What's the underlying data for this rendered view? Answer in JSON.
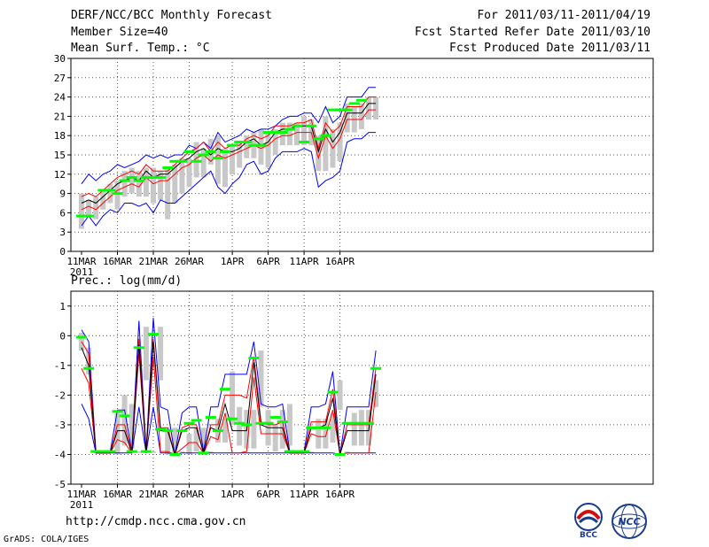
{
  "header": {
    "title": "DERF/NCC/BCC Monthly Forecast",
    "member_size": "Member Size=40",
    "variable": "Mean Surf. Temp.: °C",
    "forecast_period": "For 2011/03/11-2011/04/19",
    "start_date": "Fcst Started Refer Date 2011/03/10",
    "produced_date": "Fcst Produced Date 2011/03/11"
  },
  "footer": {
    "url": "http://cmdp.ncc.cma.gov.cn",
    "credit": "GrADS: COLA/IGES",
    "logo_bcc": "BCC",
    "logo_ncc": "NCC"
  },
  "colors": {
    "envelope": "#0000ff",
    "spread": "#ff0000",
    "mean": "#000000",
    "obs": "#00ff00",
    "box": "#c8c8c8",
    "grid": "#555555"
  },
  "chart_data": [
    {
      "type": "line",
      "title": "Mean Surf. Temp.: °C",
      "x_tick_labels": [
        "11MAR",
        "16MAR",
        "21MAR",
        "26MAR",
        "1APR",
        "6APR",
        "11APR",
        "16APR"
      ],
      "x_tick_days": [
        1,
        6,
        11,
        16,
        22,
        27,
        32,
        37
      ],
      "year_label": "2011",
      "ylim": [
        0,
        30
      ],
      "y_ticks": [
        0,
        3,
        6,
        9,
        12,
        15,
        18,
        21,
        24,
        27,
        30
      ],
      "day_count": 40,
      "series": [
        {
          "name": "max",
          "values": [
            10.5,
            12,
            11,
            12,
            12.5,
            13.5,
            13,
            13.5,
            14,
            15,
            14.5,
            15,
            14.5,
            15,
            15,
            16.5,
            16,
            17,
            16,
            18.5,
            17,
            17.5,
            18,
            19,
            18.5,
            19,
            19,
            19.5,
            20.5,
            21,
            21,
            21.5,
            21.5,
            20,
            22.5,
            20,
            21,
            24,
            24,
            24,
            25.5,
            25.5
          ]
        },
        {
          "name": "upper",
          "values": [
            8.5,
            9,
            8.5,
            9.5,
            10.5,
            11.5,
            12,
            12.5,
            12,
            13.5,
            12.5,
            12.5,
            12.5,
            13.5,
            14.5,
            15.5,
            16,
            17,
            15.5,
            17,
            16,
            16.5,
            16.5,
            17.5,
            18,
            17.5,
            18,
            19.5,
            19.5,
            19.5,
            20,
            20,
            20.5,
            16,
            20,
            18.5,
            19.5,
            22.5,
            22.5,
            22.5,
            24,
            24
          ]
        },
        {
          "name": "mean",
          "values": [
            7.5,
            8,
            7.5,
            8.5,
            9.5,
            10.5,
            11,
            11.5,
            11,
            12.5,
            11.5,
            12,
            12,
            13,
            14,
            14.5,
            15.5,
            16,
            15,
            16,
            15.5,
            15.5,
            16,
            17,
            17.5,
            16.5,
            17,
            18.5,
            19,
            19,
            19.5,
            19.5,
            19.5,
            15.5,
            19,
            17,
            18.5,
            21.5,
            21.5,
            21.5,
            23,
            23
          ]
        },
        {
          "name": "lower",
          "values": [
            6.5,
            7,
            6.5,
            7.5,
            8.5,
            9.5,
            10,
            10.5,
            10,
            11.5,
            10.5,
            11,
            11,
            12,
            13,
            13.5,
            14.5,
            15,
            14,
            15,
            14.5,
            15,
            15.5,
            16,
            16.5,
            16,
            16.5,
            17.5,
            18,
            18,
            18.5,
            18.5,
            18.5,
            14.5,
            18,
            16,
            17.5,
            20.5,
            20.5,
            20.5,
            22,
            22
          ]
        },
        {
          "name": "min",
          "values": [
            4,
            5.5,
            4,
            5.5,
            6.5,
            6,
            7.5,
            7.5,
            7,
            7.5,
            6,
            8,
            7.5,
            7.5,
            8.5,
            9.5,
            10.5,
            11.5,
            12.5,
            10,
            9,
            10.5,
            11.5,
            13.5,
            14,
            12,
            12.5,
            14.5,
            15.5,
            15.5,
            15.5,
            16,
            15.5,
            10,
            11,
            11.5,
            12.5,
            17,
            17.5,
            17.5,
            18.5,
            18.5
          ]
        },
        {
          "name": "box_top",
          "values": [
            9,
            8,
            8.5,
            9.5,
            10.5,
            11,
            12.5,
            13,
            12.5,
            13,
            13,
            12.5,
            13,
            13.5,
            14.5,
            14.5,
            17,
            16,
            17.5,
            18,
            16,
            16.5,
            17,
            18,
            18.5,
            19,
            18.5,
            19,
            20,
            20,
            20,
            21,
            20.5,
            18,
            21,
            19,
            20,
            23,
            22.5,
            23,
            24,
            24
          ]
        },
        {
          "name": "box_bottom",
          "values": [
            3.5,
            5.5,
            5,
            6.5,
            7.5,
            6.5,
            8.5,
            9,
            8.5,
            8.5,
            7.5,
            8,
            5,
            7.5,
            9,
            10,
            11.5,
            11.5,
            13.5,
            10.5,
            10,
            12,
            13,
            14.5,
            14.5,
            13.5,
            13,
            15,
            16.5,
            16.5,
            16.5,
            16.5,
            16.5,
            12.5,
            12.5,
            13,
            14,
            18.5,
            18.5,
            19,
            20.5,
            20.5
          ]
        },
        {
          "name": "observed",
          "values": [
            5.5,
            5.5,
            null,
            9.5,
            9.5,
            9,
            11,
            11.5,
            11,
            11.5,
            11.5,
            11.5,
            13,
            14,
            14,
            15.5,
            14,
            15,
            15.5,
            14.5,
            15.5,
            16.5,
            17,
            17,
            16.5,
            16.5,
            18.5,
            18.5,
            18.5,
            19,
            19.5,
            17,
            19.5,
            17.5,
            18,
            22,
            22,
            22,
            23,
            23.5,
            null,
            null
          ]
        }
      ]
    },
    {
      "type": "line",
      "title": "Prec.: log(mm/d)",
      "x_tick_labels": [
        "11MAR",
        "16MAR",
        "21MAR",
        "26MAR",
        "1APR",
        "6APR",
        "11APR",
        "16APR"
      ],
      "x_tick_days": [
        1,
        6,
        11,
        16,
        22,
        27,
        32,
        37
      ],
      "year_label": "2011",
      "ylim": [
        -5,
        1.5
      ],
      "y_ticks": [
        -5,
        -4,
        -3,
        -2,
        -1,
        0,
        1
      ],
      "day_count": 40,
      "series": [
        {
          "name": "max",
          "values": [
            0.2,
            -0.2,
            -3.9,
            -3.9,
            -3.9,
            -2.5,
            -2.5,
            -3.9,
            0.5,
            -3.9,
            0.6,
            -2.4,
            -2.5,
            -4,
            -2.6,
            -2.4,
            -2.4,
            -3.9,
            -2.4,
            -2.4,
            -1.3,
            -1.3,
            -1.3,
            -1.3,
            -0.2,
            -2.3,
            -2.4,
            -2.4,
            -2.3,
            -3.9,
            -3.9,
            -3.9,
            -2.4,
            -2.4,
            -2.3,
            -1.2,
            -4,
            -2.4,
            -2.4,
            -2.4,
            -2.4,
            -0.5
          ]
        },
        {
          "name": "upper",
          "values": [
            -0.2,
            -0.6,
            -3.95,
            -3.95,
            -3.95,
            -3,
            -3,
            -3.9,
            -0.1,
            -3.9,
            -0.1,
            -3.1,
            -3.1,
            -4,
            -3.1,
            -3,
            -3,
            -3.95,
            -3,
            -3,
            -2,
            -2,
            -2,
            -2.1,
            -0.7,
            -2.9,
            -3,
            -3,
            -2.9,
            -3.95,
            -3.95,
            -3.95,
            -2.9,
            -2.9,
            -2.9,
            -1.8,
            -4,
            -3,
            -3,
            -3,
            -3,
            -1.1
          ]
        },
        {
          "name": "mean",
          "values": [
            -0.4,
            -1,
            -3.95,
            -3.95,
            -3.95,
            -3.2,
            -3.2,
            -3.95,
            -0.3,
            -3.95,
            -0.2,
            -3.2,
            -3.2,
            -4,
            -3.2,
            -3.1,
            -3.1,
            -3.95,
            -3.1,
            -3.2,
            -2.3,
            -3.2,
            -3.2,
            -3.2,
            -0.9,
            -3,
            -3.1,
            -3.1,
            -3.1,
            -3.95,
            -3.95,
            -3.95,
            -3.1,
            -3.1,
            -3,
            -2.1,
            -4,
            -3.2,
            -3.2,
            -3.2,
            -3.2,
            -1.3
          ]
        },
        {
          "name": "lower",
          "values": [
            -1.1,
            -1.6,
            -3.95,
            -3.95,
            -3.95,
            -3.5,
            -3.6,
            -3.95,
            -0.6,
            -3.95,
            -0.7,
            -3.9,
            -3.9,
            -4,
            -3.8,
            -3.6,
            -3.6,
            -3.95,
            -3.4,
            -3.5,
            -2.6,
            -3.95,
            -3.95,
            -3.9,
            -1.4,
            -3.3,
            -3.3,
            -3.3,
            -3.3,
            -3.95,
            -3.95,
            -3.95,
            -3.3,
            -3.4,
            -3.4,
            -2.5,
            -4,
            -3.95,
            -3.95,
            -3.95,
            -3.95,
            -1.9
          ]
        },
        {
          "name": "min",
          "values": [
            -2.3,
            -2.8,
            -3.95,
            -3.95,
            -3.95,
            -3.95,
            -3.95,
            -3.95,
            -2.4,
            -3.95,
            -2.4,
            -3.95,
            -3.95,
            -4,
            -3.95,
            -3.95,
            -3.95,
            -3.95,
            -3.95,
            -3.95,
            -3.95,
            -3.95,
            -3.95,
            -3.95,
            -3.95,
            -3.95,
            -3.95,
            -3.95,
            -3.95,
            -3.95,
            -3.95,
            -3.95,
            -3.95,
            -3.95,
            -3.95,
            -3.95,
            -4,
            -3.95,
            -3.95,
            -3.95,
            -3.95,
            -3.95
          ]
        },
        {
          "name": "box_top",
          "values": [
            0.1,
            -0.4,
            -3.9,
            -3.9,
            -3.9,
            -2.6,
            -2,
            -2.3,
            -3.9,
            0.3,
            -3.9,
            0.3,
            -3.1,
            -3.1,
            -3.9,
            -3.3,
            -3.1,
            -3.1,
            -3.9,
            -2.8,
            -2.8,
            -1.2,
            -2.4,
            -2.5,
            -2.5,
            -0.5,
            -2.5,
            -3,
            -2.5,
            -2.3,
            -3.9,
            -3.9,
            -3.9,
            -2.8,
            -2.8,
            -2.6,
            -1.5,
            -3.9,
            -2.6,
            -2.5,
            -2.5,
            -2.4
          ]
        },
        {
          "name": "box_bottom",
          "values": [
            -0.5,
            -1.3,
            -3.95,
            -3.95,
            -3.95,
            -4,
            -3.7,
            -3.8,
            -3.95,
            -1.5,
            -3.95,
            -1.5,
            -4,
            -4,
            -3.95,
            -4,
            -3.9,
            -3.9,
            -3.95,
            -3.6,
            -3.6,
            -3,
            -3.7,
            -3.8,
            -3.8,
            -2.4,
            -3.7,
            -3.9,
            -3.8,
            -3.7,
            -3.95,
            -3.95,
            -3.95,
            -3.8,
            -3.8,
            -3.6,
            -2.5,
            -3.95,
            -3.7,
            -3.7,
            -3.7,
            -1.5
          ]
        },
        {
          "name": "observed",
          "values": [
            -0.05,
            -1.1,
            -3.9,
            -3.9,
            -3.9,
            -2.55,
            -2.7,
            -3.9,
            -0.4,
            -3.9,
            0.05,
            -3.15,
            -3.2,
            -4,
            -3.2,
            -2.95,
            -2.85,
            -3.95,
            -2.75,
            -3.2,
            -1.8,
            -2.8,
            -2.95,
            -3.0,
            -0.75,
            -2.95,
            -2.95,
            -2.75,
            -2.9,
            -3.9,
            -3.9,
            -3.9,
            -3.1,
            -3.1,
            -3.1,
            -1.9,
            -4,
            -2.95,
            -2.95,
            -2.95,
            -2.95,
            -1.1
          ]
        }
      ]
    }
  ]
}
